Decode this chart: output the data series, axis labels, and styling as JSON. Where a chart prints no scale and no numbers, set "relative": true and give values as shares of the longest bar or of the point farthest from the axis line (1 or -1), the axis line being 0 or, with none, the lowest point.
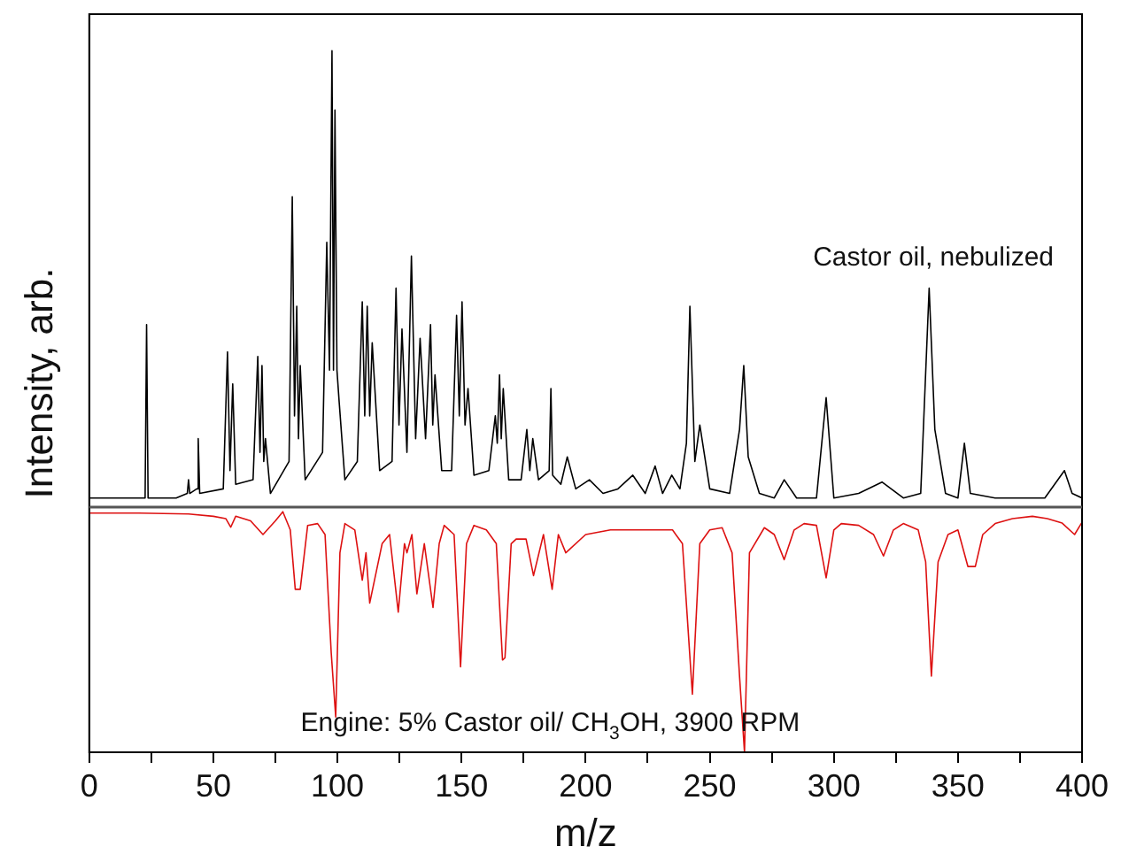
{
  "chart_data": {
    "type": "line",
    "xlabel": "m/z",
    "ylabel": "Intensity, arb.",
    "relative": true,
    "legend": false,
    "grid": false,
    "marker": "none",
    "line_style": "solid",
    "xlim": [
      0,
      400
    ],
    "xticks": [
      0,
      {
        "value": 25,
        "label": null
      },
      50,
      {
        "value": 75,
        "label": null
      },
      100,
      {
        "value": 125,
        "label": null
      },
      150,
      {
        "value": 175,
        "label": null
      },
      200,
      {
        "value": 225,
        "label": null
      },
      250,
      {
        "value": 275,
        "label": null
      },
      300,
      {
        "value": 325,
        "label": null
      },
      350,
      {
        "value": 375,
        "label": null
      },
      400
    ],
    "series": [
      {
        "name": "Castor oil, nebulized",
        "color": "#000000",
        "x": [
          0,
          10,
          22.5,
          23.1,
          23.7,
          35,
          39.5,
          40,
          40.5,
          43.3,
          43.9,
          44.5,
          54,
          55.7,
          56.7,
          57.8,
          59,
          66,
          67.9,
          68.8,
          69.6,
          70.3,
          71,
          73,
          80.5,
          81.8,
          82.7,
          83.6,
          84.3,
          85,
          87,
          94,
          95.7,
          96.8,
          97.8,
          98.4,
          99,
          99.8,
          100.7,
          103,
          108,
          110,
          111,
          112,
          113,
          114,
          117,
          122,
          123.6,
          124.8,
          126,
          128,
          129.8,
          131.5,
          133.3,
          135.5,
          137.5,
          138.4,
          139.3,
          142,
          146,
          148,
          149.1,
          150.2,
          151.4,
          152.6,
          155,
          161,
          163.6,
          164.4,
          165.3,
          166,
          166.8,
          169,
          174,
          176.3,
          177.5,
          178.7,
          181,
          185.3,
          186,
          186.7,
          190,
          192.6,
          196,
          201.5,
          207,
          213,
          219,
          224,
          228,
          231,
          234.7,
          238,
          240.6,
          242,
          244,
          246,
          250,
          258,
          262,
          263.7,
          265.5,
          270,
          276,
          280,
          285,
          293,
          296.9,
          300,
          310,
          319.4,
          328,
          335,
          338.4,
          340.7,
          345,
          350,
          352.6,
          355,
          365,
          375,
          385,
          392.9,
          396,
          400
        ],
        "values": [
          0.02,
          0.02,
          0.02,
          0.4,
          0.02,
          0.02,
          0.03,
          0.06,
          0.03,
          0.04,
          0.15,
          0.03,
          0.04,
          0.34,
          0.08,
          0.27,
          0.05,
          0.06,
          0.33,
          0.12,
          0.31,
          0.1,
          0.15,
          0.03,
          0.1,
          0.68,
          0.2,
          0.44,
          0.15,
          0.31,
          0.06,
          0.12,
          0.58,
          0.3,
          1.0,
          0.3,
          0.87,
          0.3,
          0.23,
          0.06,
          0.1,
          0.45,
          0.2,
          0.44,
          0.2,
          0.36,
          0.08,
          0.1,
          0.48,
          0.18,
          0.39,
          0.12,
          0.55,
          0.15,
          0.37,
          0.15,
          0.4,
          0.18,
          0.29,
          0.08,
          0.08,
          0.42,
          0.2,
          0.45,
          0.18,
          0.26,
          0.07,
          0.08,
          0.2,
          0.14,
          0.29,
          0.15,
          0.26,
          0.06,
          0.06,
          0.17,
          0.08,
          0.15,
          0.06,
          0.08,
          0.26,
          0.07,
          0.05,
          0.11,
          0.04,
          0.06,
          0.03,
          0.04,
          0.07,
          0.03,
          0.09,
          0.03,
          0.07,
          0.04,
          0.14,
          0.44,
          0.1,
          0.18,
          0.04,
          0.03,
          0.17,
          0.31,
          0.11,
          0.03,
          0.02,
          0.06,
          0.02,
          0.02,
          0.24,
          0.02,
          0.03,
          0.055,
          0.02,
          0.03,
          0.48,
          0.17,
          0.03,
          0.02,
          0.14,
          0.03,
          0.02,
          0.02,
          0.02,
          0.08,
          0.03,
          0.02
        ]
      },
      {
        "name": "Engine: 5% Castor oil/ CH$_{3}$OH, 3900 RPM",
        "color": "#dd1111",
        "x": [
          0,
          20,
          40,
          50,
          55,
          57,
          59,
          65,
          70,
          75,
          78,
          81,
          83,
          85,
          88,
          92,
          95,
          97.5,
          99.3,
          101,
          103,
          107,
          110,
          111.5,
          113,
          118,
          121,
          124.5,
          127,
          128,
          130,
          132,
          135,
          138.5,
          141,
          143,
          147,
          149.6,
          152,
          155,
          160,
          164,
          166.5,
          167.5,
          170,
          172,
          176,
          179,
          183,
          186.5,
          189,
          192,
          200,
          210,
          220,
          230,
          235,
          239,
          243,
          246,
          250,
          255,
          259,
          262,
          264,
          266,
          272,
          276,
          280,
          284,
          288,
          293,
          296.9,
          300,
          303,
          310,
          316,
          320,
          324,
          328,
          334,
          337,
          339.3,
          342,
          346,
          350,
          354,
          357,
          360,
          365,
          372,
          380,
          386,
          392,
          397,
          400
        ],
        "values": [
          -0.013,
          -0.013,
          -0.015,
          -0.02,
          -0.025,
          -0.044,
          -0.02,
          -0.03,
          -0.06,
          -0.03,
          -0.01,
          -0.05,
          -0.18,
          -0.18,
          -0.04,
          -0.036,
          -0.06,
          -0.32,
          -0.46,
          -0.1,
          -0.036,
          -0.05,
          -0.16,
          -0.1,
          -0.21,
          -0.08,
          -0.06,
          -0.23,
          -0.08,
          -0.1,
          -0.06,
          -0.19,
          -0.08,
          -0.22,
          -0.08,
          -0.04,
          -0.06,
          -0.35,
          -0.08,
          -0.04,
          -0.05,
          -0.08,
          -0.335,
          -0.33,
          -0.08,
          -0.07,
          -0.07,
          -0.15,
          -0.06,
          -0.18,
          -0.06,
          -0.1,
          -0.06,
          -0.05,
          -0.05,
          -0.05,
          -0.05,
          -0.08,
          -0.41,
          -0.08,
          -0.05,
          -0.045,
          -0.1,
          -0.37,
          -0.537,
          -0.1,
          -0.045,
          -0.06,
          -0.115,
          -0.05,
          -0.036,
          -0.04,
          -0.155,
          -0.05,
          -0.036,
          -0.04,
          -0.06,
          -0.107,
          -0.05,
          -0.036,
          -0.05,
          -0.12,
          -0.37,
          -0.12,
          -0.06,
          -0.05,
          -0.13,
          -0.13,
          -0.06,
          -0.036,
          -0.025,
          -0.02,
          -0.025,
          -0.035,
          -0.06,
          -0.033
        ]
      }
    ]
  }
}
